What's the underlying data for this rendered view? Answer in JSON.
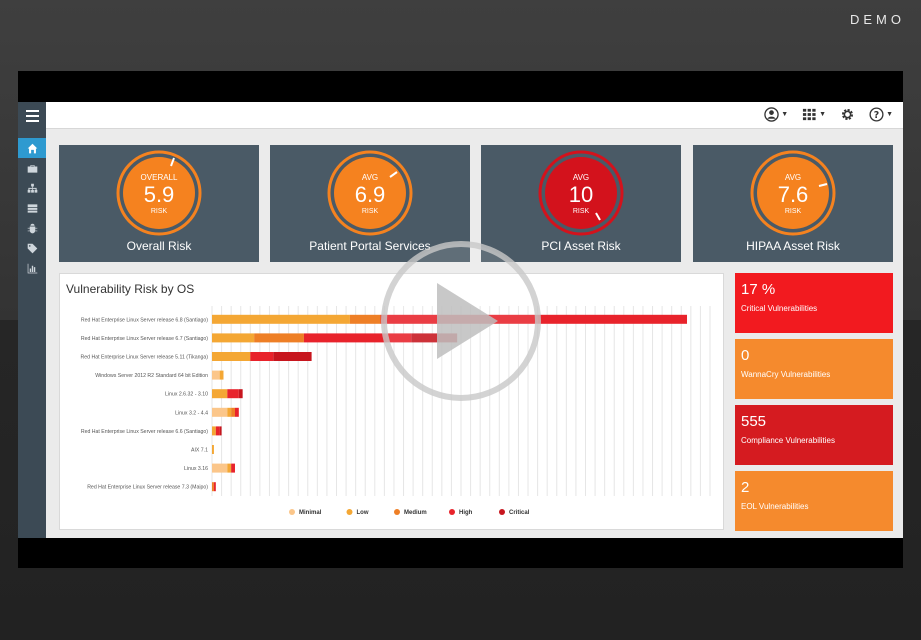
{
  "overlay": {
    "demo_label": "DEMO"
  },
  "nav": {
    "items": [
      {
        "name": "home"
      },
      {
        "name": "briefcase"
      },
      {
        "name": "sitemap"
      },
      {
        "name": "server"
      },
      {
        "name": "bug"
      },
      {
        "name": "tag"
      },
      {
        "name": "bar-chart"
      }
    ]
  },
  "topbar": {
    "icons": [
      "user-icon",
      "apps-grid-icon",
      "gear-icon",
      "help-icon"
    ]
  },
  "cards": [
    {
      "gauge_top": "OVERALL",
      "value": "5.9",
      "gauge_bottom": "RISK",
      "title": "Overall Risk",
      "color": "#f5821f"
    },
    {
      "gauge_top": "AVG",
      "value": "6.9",
      "gauge_bottom": "RISK",
      "title": "Patient Portal Services",
      "color": "#f5821f"
    },
    {
      "gauge_top": "AVG",
      "value": "10",
      "gauge_bottom": "RISK",
      "title": "PCI Asset Risk",
      "color": "#d3121c"
    },
    {
      "gauge_top": "AVG",
      "value": "7.6",
      "gauge_bottom": "RISK",
      "title": "HIPAA Asset Risk",
      "color": "#f5821f"
    }
  ],
  "panel": {
    "title": "Vulnerability Risk by OS"
  },
  "chart_data": {
    "type": "bar",
    "orientation": "horizontal",
    "stacked": true,
    "title": "Vulnerability Risk by OS",
    "categories": [
      "Red Hat Enterprise Linux Server release 6.8 (Santiago)",
      "Red Hat Enterprise Linux Server release 6.7 (Santiago)",
      "Red Hat Enterprise Linux Server release 5.11 (Tikanga)",
      "Windows Server 2012 R2 Standard 64 bit Edition",
      "Linux 2.6.32 - 3.10",
      "Linux 3.2 - 4.4",
      "Red Hat Enterprise Linux Server release 6.6 (Santiago)",
      "AIX 7.1",
      "Linux 3.16",
      "Red Hat Enterprise Linux Server release 7.3 (Maipo)"
    ],
    "series": [
      {
        "name": "Minimal",
        "color": "#fbc68a",
        "values": [
          0,
          0,
          0,
          2,
          0,
          4,
          0,
          0,
          4,
          0
        ]
      },
      {
        "name": "Low",
        "color": "#f4a734",
        "values": [
          36,
          11,
          10,
          1,
          4,
          1,
          1,
          0.5,
          1,
          0
        ]
      },
      {
        "name": "Medium",
        "color": "#ee7f26",
        "values": [
          8,
          13,
          0,
          0,
          0,
          1,
          0,
          0,
          0,
          0.5
        ]
      },
      {
        "name": "High",
        "color": "#e8232b",
        "values": [
          80,
          28,
          6,
          0,
          3,
          1,
          1,
          0,
          1,
          0.5
        ]
      },
      {
        "name": "Critical",
        "color": "#c7161e",
        "values": [
          0,
          12,
          10,
          0,
          1,
          0,
          0.5,
          0,
          0,
          0
        ]
      }
    ],
    "xlim": [
      0,
      130
    ],
    "grid": true,
    "legend_position": "bottom"
  },
  "tiles": [
    {
      "value": "17 %",
      "label": "Critical Vulnerabilities",
      "color": "#f21a1f"
    },
    {
      "value": "0",
      "label": "WannaCry Vulnerabilities",
      "color": "#f58a2d"
    },
    {
      "value": "555",
      "label": "Compliance Vulnerabilities",
      "color": "#d51b20"
    },
    {
      "value": "2",
      "label": "EOL Vulnerabilities",
      "color": "#f58a2d"
    }
  ]
}
